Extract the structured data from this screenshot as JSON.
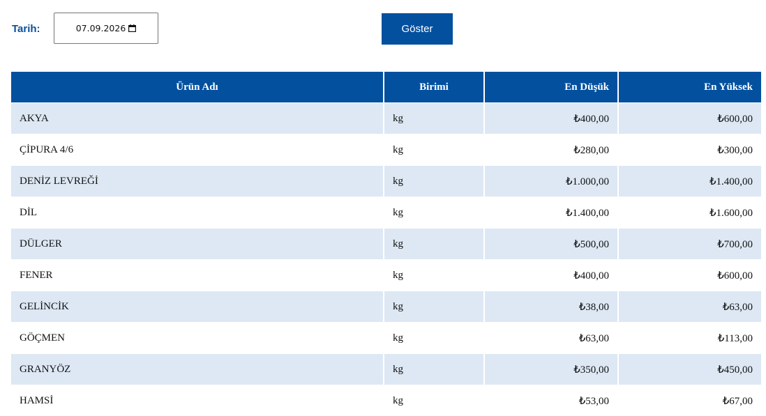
{
  "filter": {
    "date_label": "Tarih:",
    "date_value": "07.09.2026",
    "show_button_label": "Göster"
  },
  "icons": {
    "calendar": "calendar-icon"
  },
  "colors": {
    "primary": "#03509f",
    "label": "#0a4f9c",
    "row_alt": "#dde8f4"
  },
  "table": {
    "headers": {
      "name": "Ürün Adı",
      "unit": "Birimi",
      "min": "En Düşük",
      "max": "En Yüksek"
    },
    "rows": [
      {
        "name": "AKYA",
        "unit": "kg",
        "min": "₺400,00",
        "max": "₺600,00"
      },
      {
        "name": "ÇİPURA 4/6",
        "unit": "kg",
        "min": "₺280,00",
        "max": "₺300,00"
      },
      {
        "name": "DENİZ LEVREĞİ",
        "unit": "kg",
        "min": "₺1.000,00",
        "max": "₺1.400,00"
      },
      {
        "name": "DİL",
        "unit": "kg",
        "min": "₺1.400,00",
        "max": "₺1.600,00"
      },
      {
        "name": "DÜLGER",
        "unit": "kg",
        "min": "₺500,00",
        "max": "₺700,00"
      },
      {
        "name": "FENER",
        "unit": "kg",
        "min": "₺400,00",
        "max": "₺600,00"
      },
      {
        "name": "GELİNCİK",
        "unit": "kg",
        "min": "₺38,00",
        "max": "₺63,00"
      },
      {
        "name": "GÖÇMEN",
        "unit": "kg",
        "min": "₺63,00",
        "max": "₺113,00"
      },
      {
        "name": "GRANYÖZ",
        "unit": "kg",
        "min": "₺350,00",
        "max": "₺450,00"
      },
      {
        "name": "HAMSİ",
        "unit": "kg",
        "min": "₺53,00",
        "max": "₺67,00"
      }
    ]
  }
}
